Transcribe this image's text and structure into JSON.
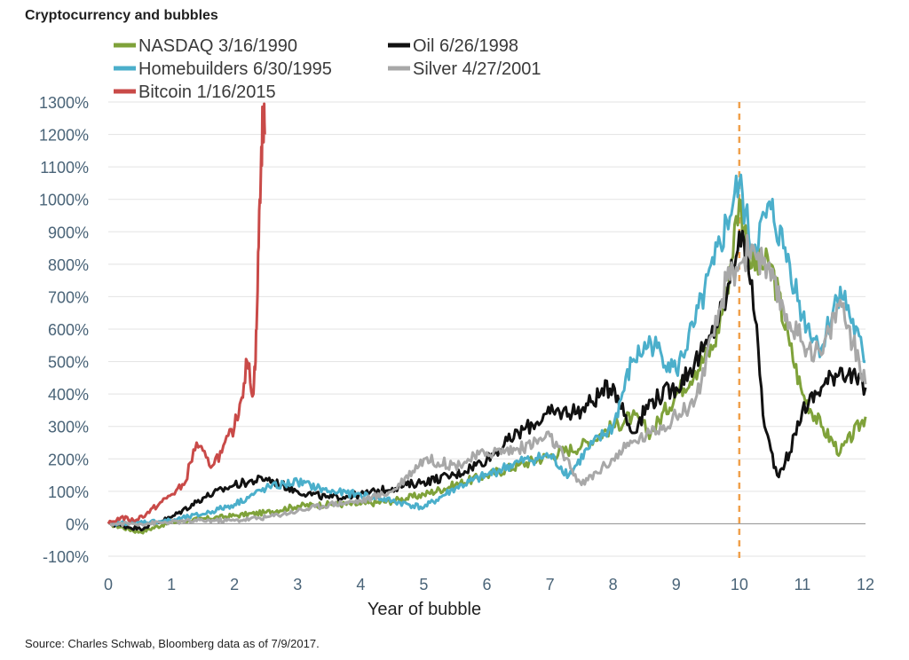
{
  "title": "Cryptocurrency and bubbles",
  "source": "Source: Charles Schwab, Bloomberg data as of 7/9/2017.",
  "chart_data": {
    "type": "line",
    "xlabel": "Year of bubble",
    "ylabel": "",
    "xlim": [
      0,
      12
    ],
    "ylim": [
      -100,
      1300
    ],
    "xticks": [
      0,
      1,
      2,
      3,
      4,
      5,
      6,
      7,
      8,
      9,
      10,
      11,
      12
    ],
    "xtick_labels": [
      "0",
      "1",
      "2",
      "3",
      "4",
      "5",
      "6",
      "7",
      "8",
      "9",
      "10",
      "11",
      "12"
    ],
    "yticks": [
      -100,
      0,
      100,
      200,
      300,
      400,
      500,
      600,
      700,
      800,
      900,
      1000,
      1100,
      1200,
      1300
    ],
    "ytick_labels": [
      "-100%",
      "0%",
      "100%",
      "200%",
      "300%",
      "400%",
      "500%",
      "600%",
      "700%",
      "800%",
      "900%",
      "1000%",
      "1100%",
      "1200%",
      "1300%"
    ],
    "grid": "horizontal",
    "legend_position": "top-left",
    "reference_line": {
      "x": 10,
      "style": "dashed",
      "color": "#F0A04B"
    },
    "series": [
      {
        "name": "NASDAQ 3/16/1990",
        "color": "#7FA23A",
        "x": [
          0,
          0.5,
          1,
          1.5,
          2,
          2.5,
          3,
          3.5,
          4,
          4.5,
          5,
          5.5,
          6,
          6.5,
          7,
          7.5,
          8,
          8.3,
          8.6,
          9,
          9.3,
          9.6,
          9.8,
          10,
          10.2,
          10.5,
          10.8,
          11,
          11.3,
          11.6,
          12
        ],
        "y": [
          0,
          -25,
          5,
          15,
          25,
          35,
          55,
          60,
          60,
          70,
          90,
          120,
          150,
          180,
          210,
          240,
          300,
          330,
          280,
          400,
          470,
          550,
          720,
          1000,
          790,
          800,
          550,
          400,
          300,
          220,
          330
        ]
      },
      {
        "name": "Oil 6/26/1998",
        "color": "#111111",
        "x": [
          0,
          0.5,
          1,
          1.5,
          2,
          2.5,
          3,
          3.5,
          4,
          4.5,
          5,
          5.5,
          6,
          6.5,
          7,
          7.5,
          7.8,
          8,
          8.3,
          8.6,
          9,
          9.5,
          9.8,
          10,
          10.2,
          10.4,
          10.6,
          10.8,
          11,
          11.3,
          11.6,
          12
        ],
        "y": [
          0,
          -15,
          20,
          80,
          120,
          140,
          100,
          80,
          90,
          110,
          130,
          150,
          200,
          280,
          340,
          350,
          400,
          430,
          280,
          380,
          420,
          550,
          700,
          900,
          750,
          300,
          150,
          220,
          350,
          420,
          480,
          420
        ]
      },
      {
        "name": "Homebuilders 6/30/1995",
        "color": "#4BAFCB",
        "x": [
          0,
          0.5,
          1,
          1.5,
          2,
          2.5,
          3,
          3.5,
          4,
          4.5,
          5,
          5.5,
          6,
          6.5,
          7,
          7.3,
          7.6,
          8,
          8.3,
          8.6,
          9,
          9.3,
          9.6,
          10,
          10.2,
          10.5,
          10.8,
          11,
          11.3,
          11.6,
          12
        ],
        "y": [
          0,
          5,
          10,
          30,
          60,
          110,
          130,
          100,
          90,
          70,
          50,
          110,
          150,
          190,
          210,
          150,
          230,
          300,
          500,
          560,
          470,
          620,
          800,
          1050,
          850,
          970,
          800,
          640,
          540,
          730,
          500
        ]
      },
      {
        "name": "Silver 4/27/2001",
        "color": "#A8A8A8",
        "x": [
          0,
          0.5,
          1,
          1.5,
          2,
          2.5,
          3,
          3.5,
          4,
          4.5,
          5,
          5.5,
          6,
          6.5,
          7,
          7.5,
          8,
          8.3,
          8.6,
          9,
          9.3,
          9.6,
          9.8,
          10,
          10.2,
          10.5,
          10.8,
          11,
          11.3,
          11.6,
          12
        ],
        "y": [
          0,
          0,
          5,
          10,
          10,
          20,
          40,
          60,
          70,
          100,
          200,
          180,
          220,
          230,
          270,
          120,
          200,
          250,
          280,
          330,
          380,
          580,
          750,
          800,
          860,
          750,
          620,
          560,
          520,
          690,
          430
        ]
      },
      {
        "name": "Bitcoin 1/16/2015",
        "color": "#C94A48",
        "x": [
          0,
          0.2,
          0.4,
          0.6,
          0.8,
          1.0,
          1.2,
          1.4,
          1.6,
          1.8,
          2.0,
          2.1,
          2.2,
          2.3,
          2.35,
          2.4,
          2.45,
          2.48
        ],
        "y": [
          0,
          20,
          10,
          30,
          60,
          90,
          120,
          250,
          180,
          220,
          300,
          380,
          500,
          400,
          600,
          1000,
          1260,
          1200
        ]
      }
    ]
  }
}
